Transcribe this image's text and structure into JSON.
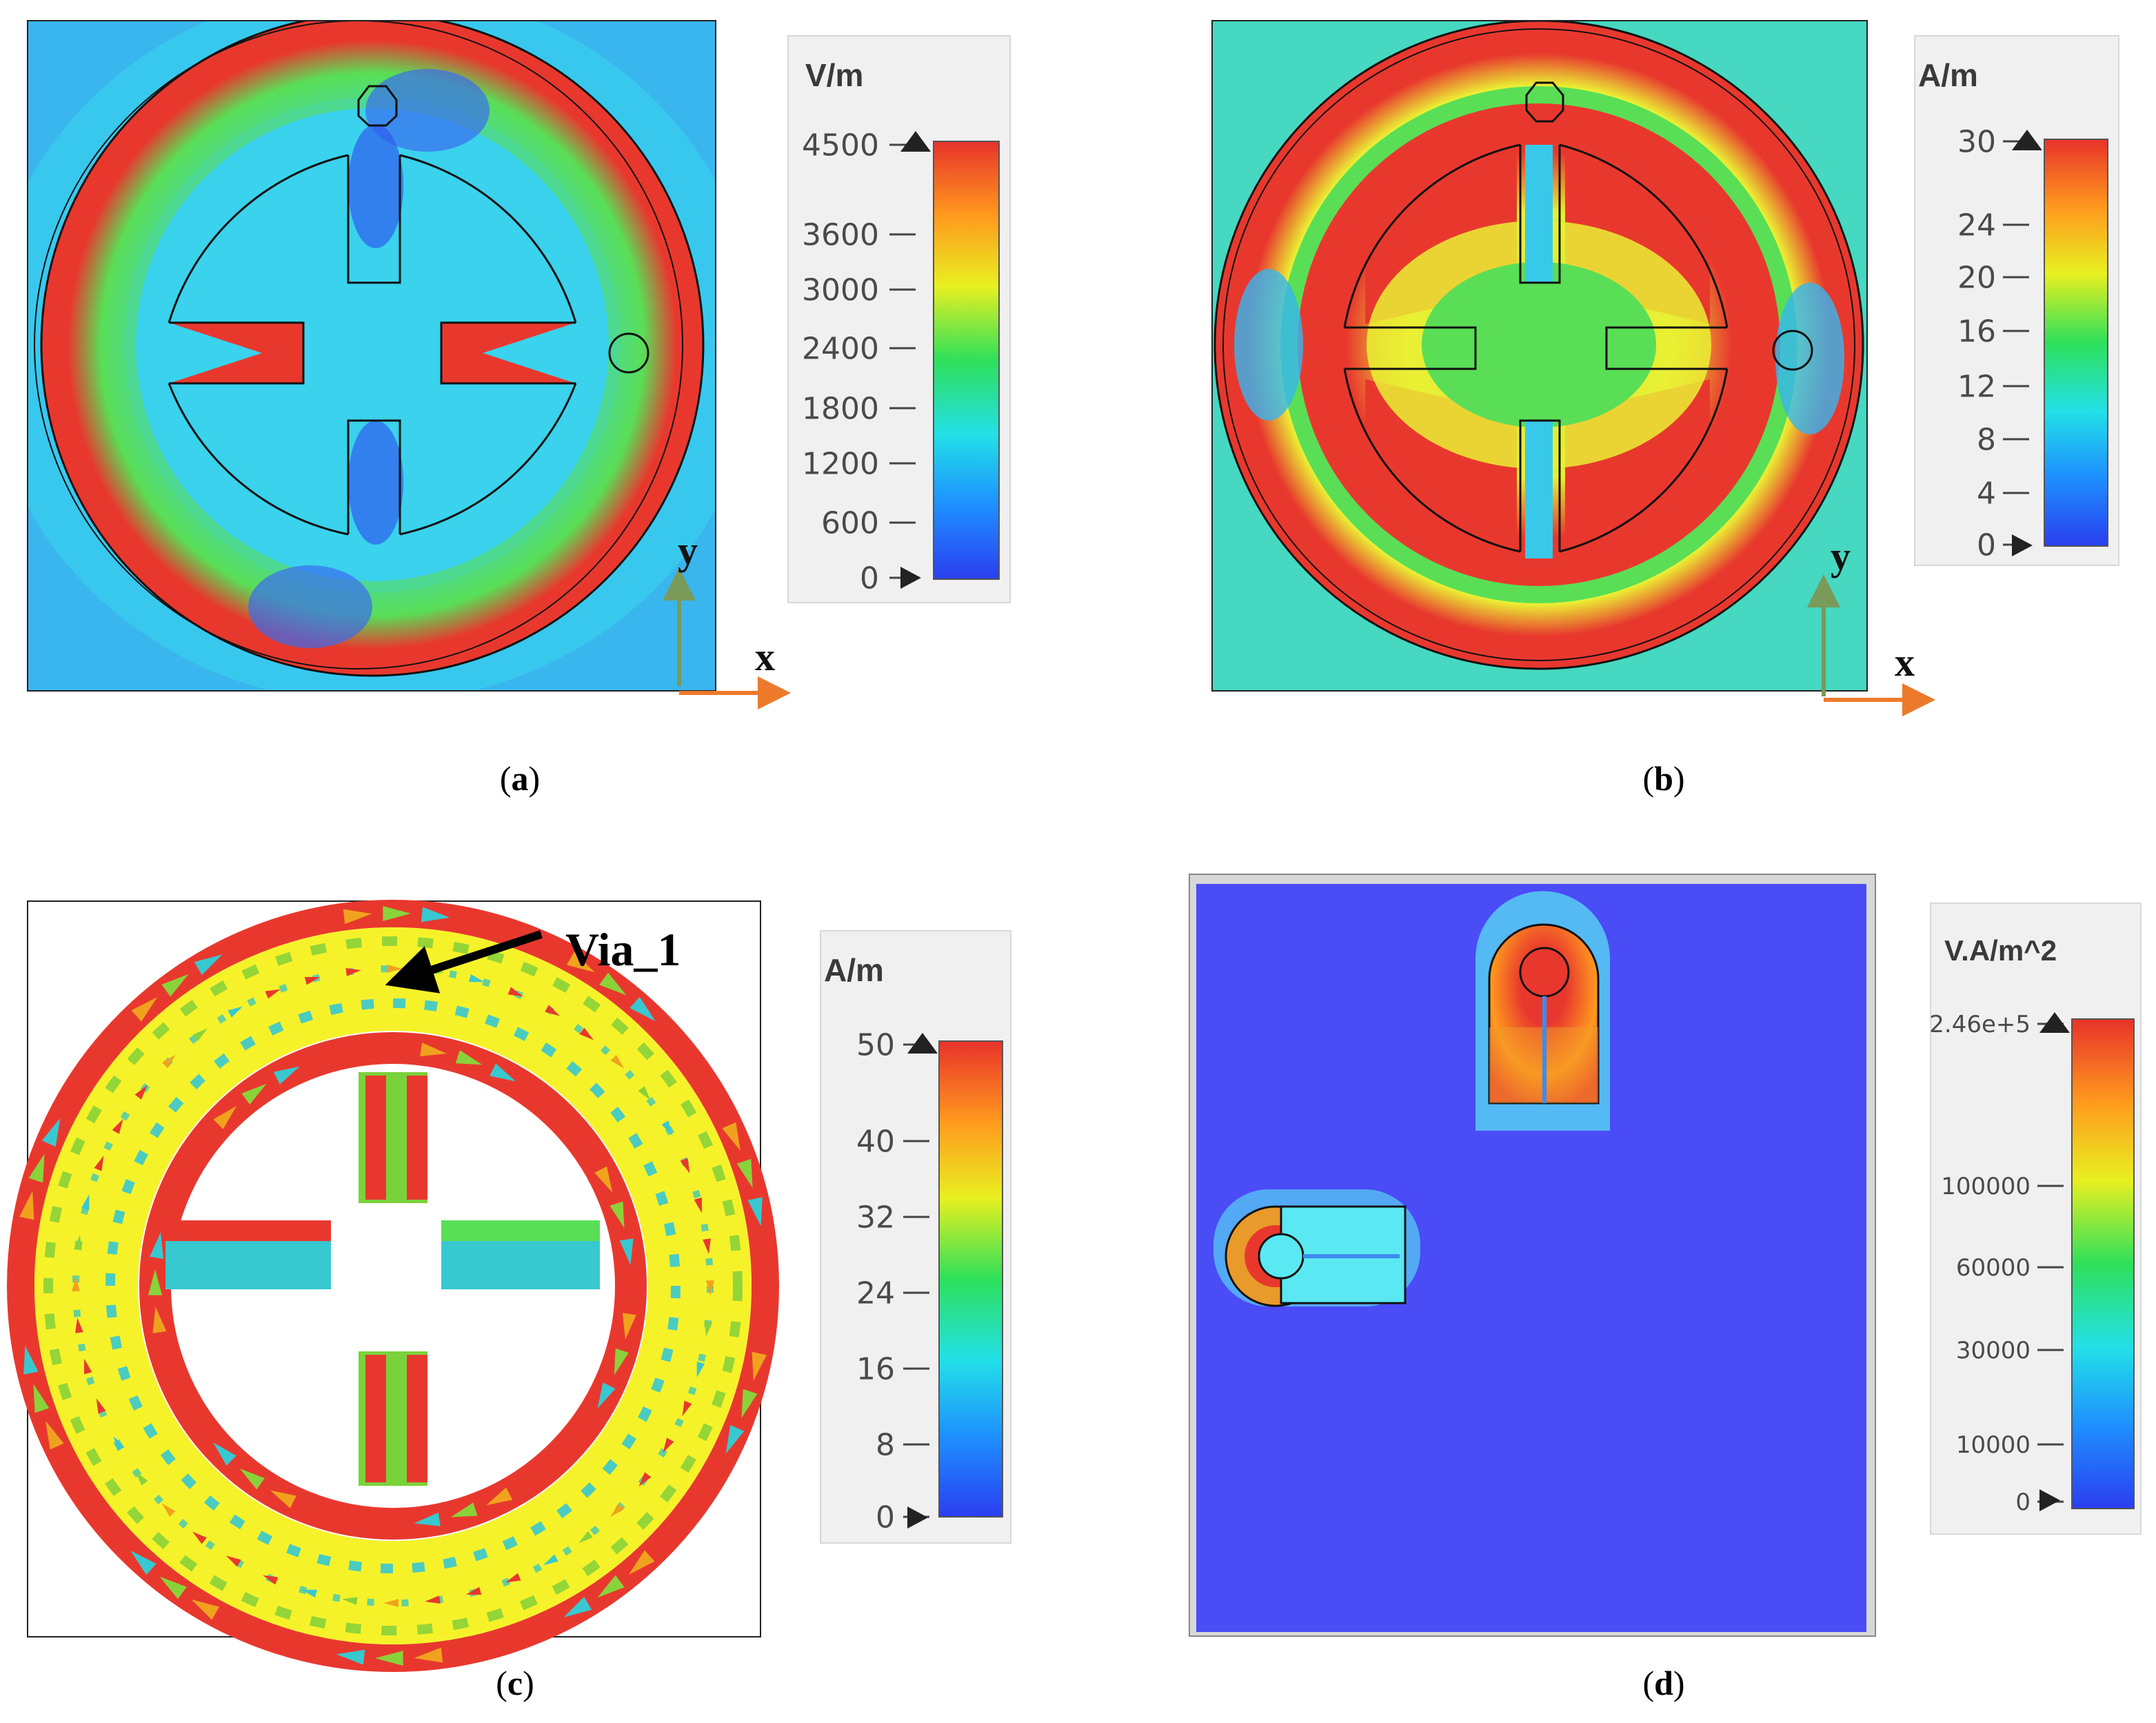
{
  "colors": {
    "jet": [
      "#2a3ef0",
      "#1e90ff",
      "#22e0e8",
      "#2ee05a",
      "#e8f020",
      "#ff9a1e",
      "#e8322a"
    ],
    "field_blue": "#2b5cf2",
    "field_cyan": "#38dcea",
    "field_green": "#5ade56",
    "field_yellow": "#eaf034",
    "field_red": "#e8382e",
    "axis_green": "#7a9a5a",
    "axis_orange": "#ec7a2a",
    "deep_blue": "#4a4cf6"
  },
  "panels": [
    {
      "id": "a",
      "caption": "a",
      "colorbar": {
        "unit": "V/m",
        "ticks": [
          "4500",
          "3600",
          "3000",
          "2400",
          "1800",
          "1200",
          "600",
          "0"
        ]
      },
      "axes": {
        "y": "y",
        "x": "x"
      }
    },
    {
      "id": "b",
      "caption": "b",
      "colorbar": {
        "unit": "A/m",
        "ticks": [
          "30",
          "24",
          "20",
          "16",
          "12",
          "8",
          "4",
          "0"
        ]
      },
      "axes": {
        "y": "y",
        "x": "x"
      }
    },
    {
      "id": "c",
      "caption": "c",
      "colorbar": {
        "unit": "A/m",
        "ticks": [
          "50",
          "40",
          "32",
          "24",
          "16",
          "8",
          "0"
        ]
      },
      "annotation": "Via_1"
    },
    {
      "id": "d",
      "caption": "d",
      "colorbar": {
        "unit": "V.A/m^2",
        "ticks": [
          "2.46e+5",
          "100000",
          "60000",
          "30000",
          "10000",
          "0"
        ]
      }
    }
  ]
}
